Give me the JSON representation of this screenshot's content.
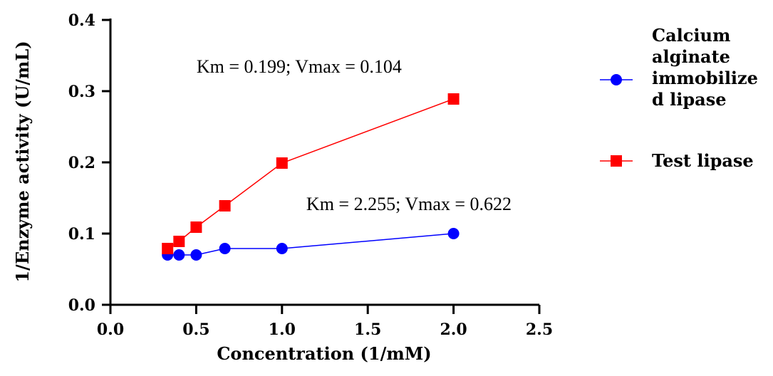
{
  "chart_data": {
    "type": "line",
    "title": "",
    "xlabel": "Concentration (1/mM)",
    "ylabel": "1/Enzyme activity (U/mL)",
    "xlim": [
      0,
      2.5
    ],
    "ylim": [
      0,
      0.4
    ],
    "x_ticks": [
      "0.0",
      "0.5",
      "1.0",
      "1.5",
      "2.0",
      "2.5"
    ],
    "y_ticks": [
      "0.0",
      "0.1",
      "0.2",
      "0.3",
      "0.4"
    ],
    "grid": false,
    "legend_position": "right",
    "series": [
      {
        "name": "Calcium alginate immobilized lipase",
        "legend_lines": [
          "Calcium",
          "alginate",
          "immobilize",
          "d lipase"
        ],
        "color": "#0000ff",
        "marker": "circle",
        "x": [
          0.333,
          0.4,
          0.5,
          0.667,
          1.0,
          2.0
        ],
        "y": [
          0.07,
          0.07,
          0.07,
          0.079,
          0.079,
          0.1
        ]
      },
      {
        "name": "Test lipase",
        "legend_lines": [
          "Test lipase"
        ],
        "color": "#ff0000",
        "marker": "square",
        "x": [
          0.333,
          0.4,
          0.5,
          0.667,
          1.0,
          2.0
        ],
        "y": [
          0.079,
          0.089,
          0.109,
          0.139,
          0.199,
          0.289
        ]
      }
    ],
    "annotations": [
      {
        "text": "Km = 0.199; Vmax = 0.104",
        "x": 1.1,
        "y": 0.326
      },
      {
        "text": "Km = 2.255; Vmax = 0.622",
        "x": 1.74,
        "y": 0.133
      }
    ]
  }
}
